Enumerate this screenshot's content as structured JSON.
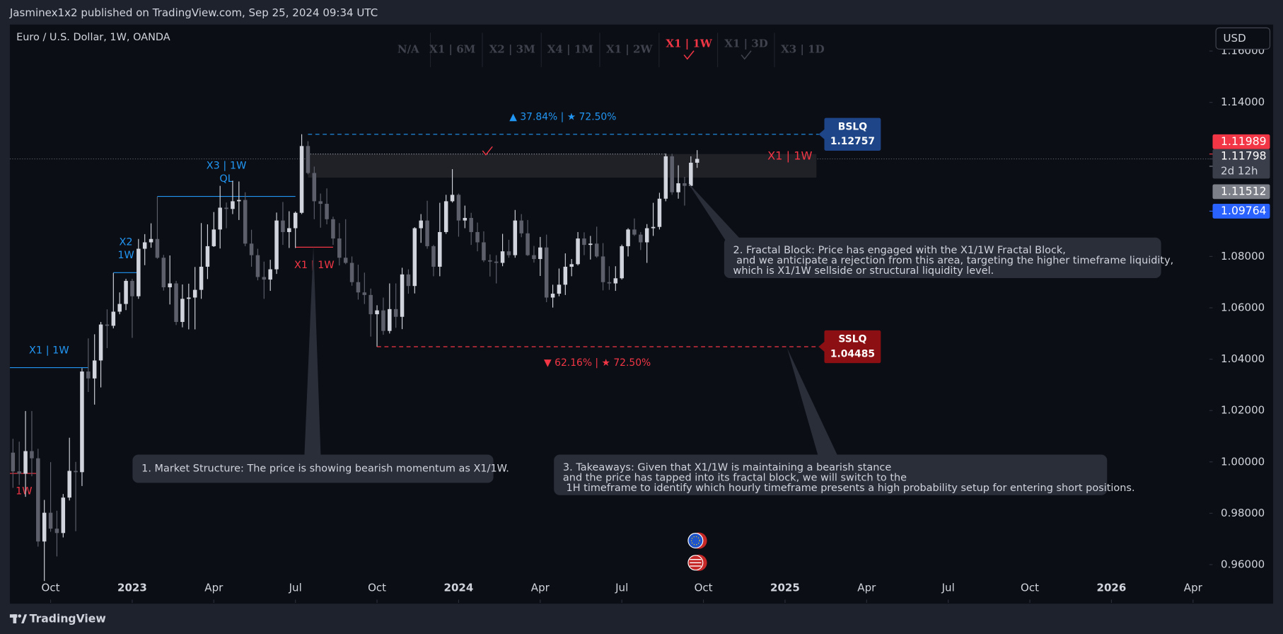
{
  "header": {
    "publisher": "Jasminex1x2 published on TradingView.com, Sep 25, 2024 09:34 UTC"
  },
  "chart_data": {
    "type": "candlestick",
    "title": "Euro / U.S. Dollar, 1W, OANDA",
    "currency": "USD",
    "up_color": "#d1d4dc",
    "down_color": "#5d606b",
    "open": [
      1.0036,
      0.9963,
      0.9954,
      1.0042,
      1.0014,
      0.969,
      0.9802,
      0.974,
      0.9723,
      0.9861,
      0.9965,
      0.996,
      1.0352,
      1.0325,
      1.0395,
      1.0535,
      1.053,
      1.0585,
      1.0615,
      1.0705,
      1.0645,
      1.083,
      1.0855,
      1.0868,
      1.0795,
      1.068,
      1.0695,
      1.0545,
      1.0635,
      1.064,
      1.067,
      1.076,
      1.084,
      1.0905,
      1.099,
      1.0985,
      1.1015,
      1.102,
      1.085,
      1.0805,
      1.072,
      1.071,
      1.075,
      1.094,
      1.0895,
      1.091,
      1.097,
      1.123,
      1.1125,
      1.1015,
      1.1005,
      1.0945,
      1.087,
      1.0795,
      1.0775,
      1.07,
      1.066,
      1.065,
      1.0575,
      1.059,
      1.051,
      1.0595,
      1.0565,
      1.073,
      1.0685,
      1.091,
      1.094,
      1.084,
      1.076,
      1.0895,
      1.1015,
      1.104,
      1.094,
      1.095,
      1.0895,
      1.0855,
      1.0785,
      1.078,
      1.0775,
      1.082,
      1.0805,
      1.094,
      1.089,
      1.0805,
      1.079,
      1.0835,
      1.064,
      1.0655,
      1.069,
      1.076,
      1.077,
      1.087,
      1.0845,
      1.085,
      1.08,
      1.07,
      1.0695,
      1.0715,
      1.084,
      1.0905,
      1.0885,
      1.0855,
      1.091,
      1.0915,
      1.1025,
      1.119,
      1.105,
      1.1085,
      1.1075,
      1.1165
    ],
    "high": [
      1.009,
      1.0079,
      1.0198,
      1.0198,
      1.0051,
      0.9852,
      0.9999,
      0.981,
      0.9875,
      1.0094,
      1.0,
      1.0365,
      1.0481,
      1.0497,
      1.0545,
      1.0594,
      1.0736,
      1.066,
      1.0713,
      1.0713,
      1.0868,
      1.0887,
      1.0929,
      1.1033,
      1.0806,
      1.0804,
      1.0705,
      1.0691,
      1.0694,
      1.0759,
      1.093,
      1.0925,
      1.0973,
      1.1075,
      1.101,
      1.1095,
      1.1092,
      1.105,
      1.0904,
      1.083,
      1.078,
      1.0787,
      1.0971,
      1.1012,
      1.0976,
      1.0975,
      1.1276,
      1.1249,
      1.115,
      1.1045,
      1.1065,
      1.0955,
      1.093,
      1.0945,
      1.08,
      1.0768,
      1.0737,
      1.0675,
      1.061,
      1.064,
      1.0695,
      1.0695,
      1.0756,
      1.075,
      1.0914,
      1.0965,
      1.1017,
      1.0845,
      1.1009,
      1.104,
      1.114,
      1.1045,
      1.0998,
      1.097,
      1.0932,
      1.0898,
      1.0808,
      1.0805,
      1.0888,
      1.0865,
      1.0981,
      1.0965,
      1.0942,
      1.0841,
      1.0876,
      1.0885,
      1.069,
      1.0753,
      1.0812,
      1.079,
      1.0895,
      1.0894,
      1.088,
      1.0916,
      1.0852,
      1.0762,
      1.0762,
      1.0846,
      1.091,
      1.0948,
      1.0895,
      1.0926,
      1.1009,
      1.1048,
      1.1201,
      1.12,
      1.1155,
      1.111,
      1.119,
      1.1214
    ],
    "low": [
      0.9899,
      0.991,
      0.9864,
      0.9944,
      0.967,
      0.9536,
      0.9728,
      0.9632,
      0.9706,
      0.985,
      0.973,
      0.9906,
      1.0272,
      1.0223,
      1.029,
      1.0443,
      1.052,
      1.0575,
      1.0591,
      1.0483,
      1.0635,
      1.0766,
      1.0834,
      1.0791,
      1.0667,
      1.0613,
      1.0533,
      1.0524,
      1.0516,
      1.0516,
      1.0635,
      1.0712,
      1.0837,
      1.0831,
      1.091,
      1.0965,
      1.0942,
      1.084,
      1.076,
      1.0707,
      1.0635,
      1.0666,
      1.0732,
      1.0845,
      1.0833,
      1.0833,
      1.0965,
      1.112,
      1.0945,
      1.0912,
      1.0925,
      1.0845,
      1.0765,
      1.077,
      1.0686,
      1.0632,
      1.0615,
      1.0488,
      1.0448,
      1.0495,
      1.05,
      1.0522,
      1.0517,
      1.0655,
      1.0656,
      1.0853,
      1.083,
      1.0723,
      1.0723,
      1.0888,
      1.101,
      1.0877,
      1.091,
      1.0845,
      1.082,
      1.0778,
      1.0722,
      1.0695,
      1.0762,
      1.0795,
      1.0795,
      1.0875,
      1.0802,
      1.0776,
      1.0724,
      1.0622,
      1.0601,
      1.0645,
      1.065,
      1.0723,
      1.0765,
      1.0805,
      1.0788,
      1.0795,
      1.0668,
      1.067,
      1.0666,
      1.071,
      1.08,
      1.088,
      1.0825,
      1.0775,
      1.088,
      1.0905,
      1.1015,
      1.104,
      1.1025,
      1.0998,
      1.107,
      1.1145
    ],
    "close": [
      0.9963,
      0.9954,
      1.0042,
      1.0014,
      0.969,
      0.9802,
      0.974,
      0.9723,
      0.9861,
      0.9965,
      0.996,
      1.0352,
      1.0325,
      1.0395,
      1.0535,
      1.053,
      1.0585,
      1.0615,
      1.0705,
      1.0645,
      1.083,
      1.0855,
      1.0868,
      1.0795,
      1.068,
      1.0695,
      1.0545,
      1.0635,
      1.064,
      1.067,
      1.076,
      1.084,
      1.0905,
      1.099,
      1.0985,
      1.1015,
      1.102,
      1.085,
      1.0805,
      1.072,
      1.071,
      1.075,
      1.094,
      1.0895,
      1.091,
      1.097,
      1.123,
      1.1125,
      1.1015,
      1.1005,
      1.0945,
      1.087,
      1.0795,
      1.0775,
      1.07,
      1.066,
      1.065,
      1.0575,
      1.059,
      1.051,
      1.0595,
      1.0565,
      1.073,
      1.0685,
      1.091,
      1.094,
      1.084,
      1.076,
      1.0895,
      1.1015,
      1.104,
      1.094,
      1.095,
      1.0895,
      1.0855,
      1.0785,
      1.078,
      1.0775,
      1.082,
      1.0805,
      1.094,
      1.089,
      1.0805,
      1.079,
      1.0835,
      1.064,
      1.0655,
      1.069,
      1.076,
      1.077,
      1.087,
      1.0845,
      1.085,
      1.08,
      1.07,
      1.0695,
      1.0715,
      1.084,
      1.0905,
      1.0885,
      1.0855,
      1.091,
      1.0915,
      1.1025,
      1.119,
      1.105,
      1.1085,
      1.1075,
      1.1165,
      1.118
    ],
    "ylim": [
      0.9451,
      1.1703
    ],
    "yticks": [
      {
        "value": 0.96,
        "label": "0.96000"
      },
      {
        "value": 0.98,
        "label": "0.98000"
      },
      {
        "value": 1.0,
        "label": "1.00000"
      },
      {
        "value": 1.02,
        "label": "1.02000"
      },
      {
        "value": 1.04,
        "label": "1.04000"
      },
      {
        "value": 1.06,
        "label": "1.06000"
      },
      {
        "value": 1.08,
        "label": "1.08000"
      },
      {
        "value": 1.14,
        "label": "1.14000"
      },
      {
        "value": 1.16,
        "label": "1.16000"
      }
    ],
    "xlim": [
      -0.5,
      190.6
    ],
    "xticks": [
      {
        "value": 6,
        "label": "Oct"
      },
      {
        "value": 19,
        "label": "2023"
      },
      {
        "value": 32,
        "label": "Apr"
      },
      {
        "value": 45,
        "label": "Jul"
      },
      {
        "value": 58,
        "label": "Oct"
      },
      {
        "value": 71,
        "label": "2024"
      },
      {
        "value": 84,
        "label": "Apr"
      },
      {
        "value": 97,
        "label": "Jul"
      },
      {
        "value": 110,
        "label": "Oct"
      },
      {
        "value": 123,
        "label": "2025"
      },
      {
        "value": 136,
        "label": "Apr"
      },
      {
        "value": 149,
        "label": "Jul"
      },
      {
        "value": 162,
        "label": "Oct"
      },
      {
        "value": 175,
        "label": "2026"
      },
      {
        "value": 188,
        "label": "Apr"
      }
    ],
    "timeframes": [
      {
        "label": "N/A"
      },
      {
        "label": "X1 | 6M"
      },
      {
        "label": "X2 | 3M"
      },
      {
        "label": "X4 | 1M"
      },
      {
        "label": "X1 | 2W"
      },
      {
        "label": "X1 | 1W",
        "active": true,
        "checked": true
      },
      {
        "label": "X1 | 3D",
        "checked": true
      },
      {
        "label": "X3 | 1D"
      }
    ],
    "liquidity": [
      {
        "label": "BSLQ",
        "value": 1.12757,
        "start": 47,
        "end": 129,
        "color": "#2196f3",
        "box": "#1e4588",
        "stats": "▲ 37.84% | ★ 72.50%",
        "side": "above"
      },
      {
        "label": "SSLQ",
        "value": 1.04485,
        "start": 58,
        "end": 129,
        "color": "#f23645",
        "box": "#8c0f14",
        "stats": "▼ 62.16% | ★ 72.50%",
        "side": "below"
      }
    ],
    "zone": {
      "label": "X1 | 1W",
      "top": 1.1199,
      "bottom": 1.1107,
      "start": 47,
      "end": 128,
      "color": "#f23645",
      "fill": "#1f2127"
    },
    "levels": [
      {
        "value": 1.1034,
        "start": 23,
        "end": 45,
        "color": "#2196f3",
        "label": [
          "X3 | 1W",
          "QL"
        ],
        "side": "above"
      },
      {
        "value": 1.0737,
        "start": 16,
        "end": 20,
        "color": "#2196f3",
        "label": [
          "X2",
          "1W"
        ],
        "side": "above"
      },
      {
        "value": 1.0367,
        "start": -0.5,
        "end": 12,
        "color": "#2196f3",
        "label": [
          "X1 | 1W"
        ],
        "side": "above"
      },
      {
        "value": 1.0836,
        "start": 45,
        "end": 51,
        "color": "#f23645",
        "label": [
          "X1 | 1W"
        ],
        "side": "below"
      },
      {
        "value": 0.9955,
        "start": -0.5,
        "end": 4,
        "color": "#f23645",
        "label": [
          "1W"
        ],
        "side": "below"
      }
    ],
    "price_labels": [
      {
        "value": 1.11989,
        "color": "#f23645"
      },
      {
        "value": 1.11798,
        "color": "#3a3e4a",
        "countdown": "2d 12h"
      },
      {
        "value": 1.11512,
        "color": "#7c7f88"
      },
      {
        "value": 1.09764,
        "color": "#2962ff"
      }
    ],
    "callouts": [
      {
        "lines": [
          "1. Market Structure: The price is showing bearish momentum as X1/1W."
        ]
      },
      {
        "lines": [
          "2. Fractal Block: Price has engaged with the X1/1W Fractal Block,",
          " and we anticipate a rejection from this area, targeting the higher timeframe liquidity,",
          "which is X1/1W sellside or structural liquidity level."
        ]
      },
      {
        "lines": [
          "3. Takeaways: Given that X1/1W is maintaining a bearish stance",
          "and the price has tapped into its fractal block, we will switch to the",
          " 1H timeframe to identify which hourly timeframe presents a high probability setup for entering short positions."
        ]
      }
    ]
  },
  "footer": {
    "brand": "TradingView"
  }
}
